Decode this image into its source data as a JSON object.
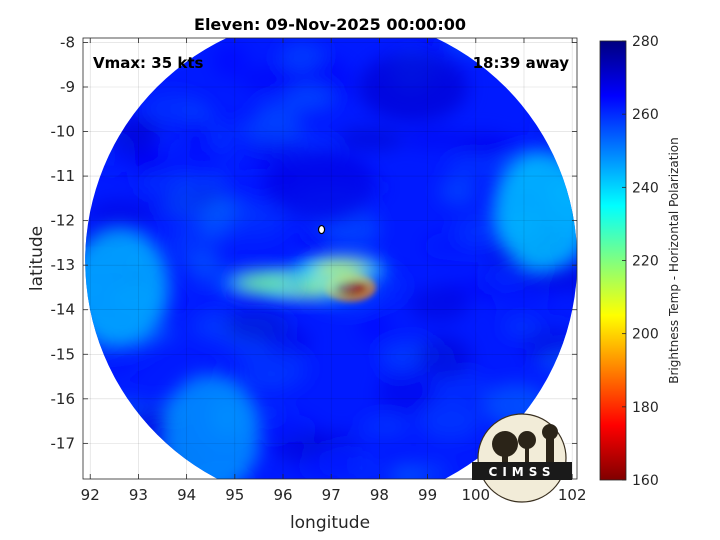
{
  "chart_data": {
    "type": "heatmap",
    "title": "Eleven: 09-Nov-2025 00:00:00",
    "xlabel": "longitude",
    "ylabel": "latitude",
    "xlim": [
      91.85,
      102.1
    ],
    "ylim": [
      -17.8,
      -7.9
    ],
    "xticks": [
      92,
      93,
      94,
      95,
      96,
      97,
      98,
      99,
      100,
      101,
      102
    ],
    "yticks": [
      -8,
      -9,
      -10,
      -11,
      -12,
      -13,
      -14,
      -15,
      -16,
      -17
    ],
    "grid": true,
    "annotations": {
      "top_left": "Vmax: 35 kts",
      "top_right": "18:39 away"
    },
    "colorbar": {
      "label": "Brightness Temp - Horizontal Polarization",
      "min": 160,
      "max": 280,
      "ticks": [
        160,
        180,
        200,
        220,
        240,
        260,
        280
      ],
      "colors": [
        "#800000",
        "#ff0000",
        "#ff8000",
        "#ffff00",
        "#80ff80",
        "#00ffff",
        "#0080ff",
        "#0000ff",
        "#000080"
      ]
    },
    "field": {
      "background_tb": 262,
      "swath_center": [
        97.0,
        -12.9
      ],
      "features": [
        {
          "kind": "cold_core",
          "lon": 97.4,
          "lat": -13.5,
          "tb": 165
        },
        {
          "kind": "rainband",
          "lon": 96.5,
          "lat": -13.45,
          "tb": 212
        },
        {
          "kind": "rainband",
          "lon": 95.6,
          "lat": -13.4,
          "tb": 220
        },
        {
          "kind": "rainband",
          "lon": 97.2,
          "lat": -13.1,
          "tb": 210
        },
        {
          "kind": "warm_region",
          "lon": 92.6,
          "lat": -13.5,
          "tb": 242
        },
        {
          "kind": "warm_region",
          "lon": 101.4,
          "lat": -11.8,
          "tb": 240
        },
        {
          "kind": "warm_region",
          "lon": 94.5,
          "lat": -16.8,
          "tb": 246
        },
        {
          "kind": "cold_region",
          "lon": 96.8,
          "lat": -11.2,
          "tb": 268
        },
        {
          "kind": "cold_region",
          "lon": 98.7,
          "lat": -9.0,
          "tb": 270
        }
      ],
      "storm_center": [
        96.8,
        -12.2
      ]
    },
    "logo_text": "CIMSS"
  }
}
